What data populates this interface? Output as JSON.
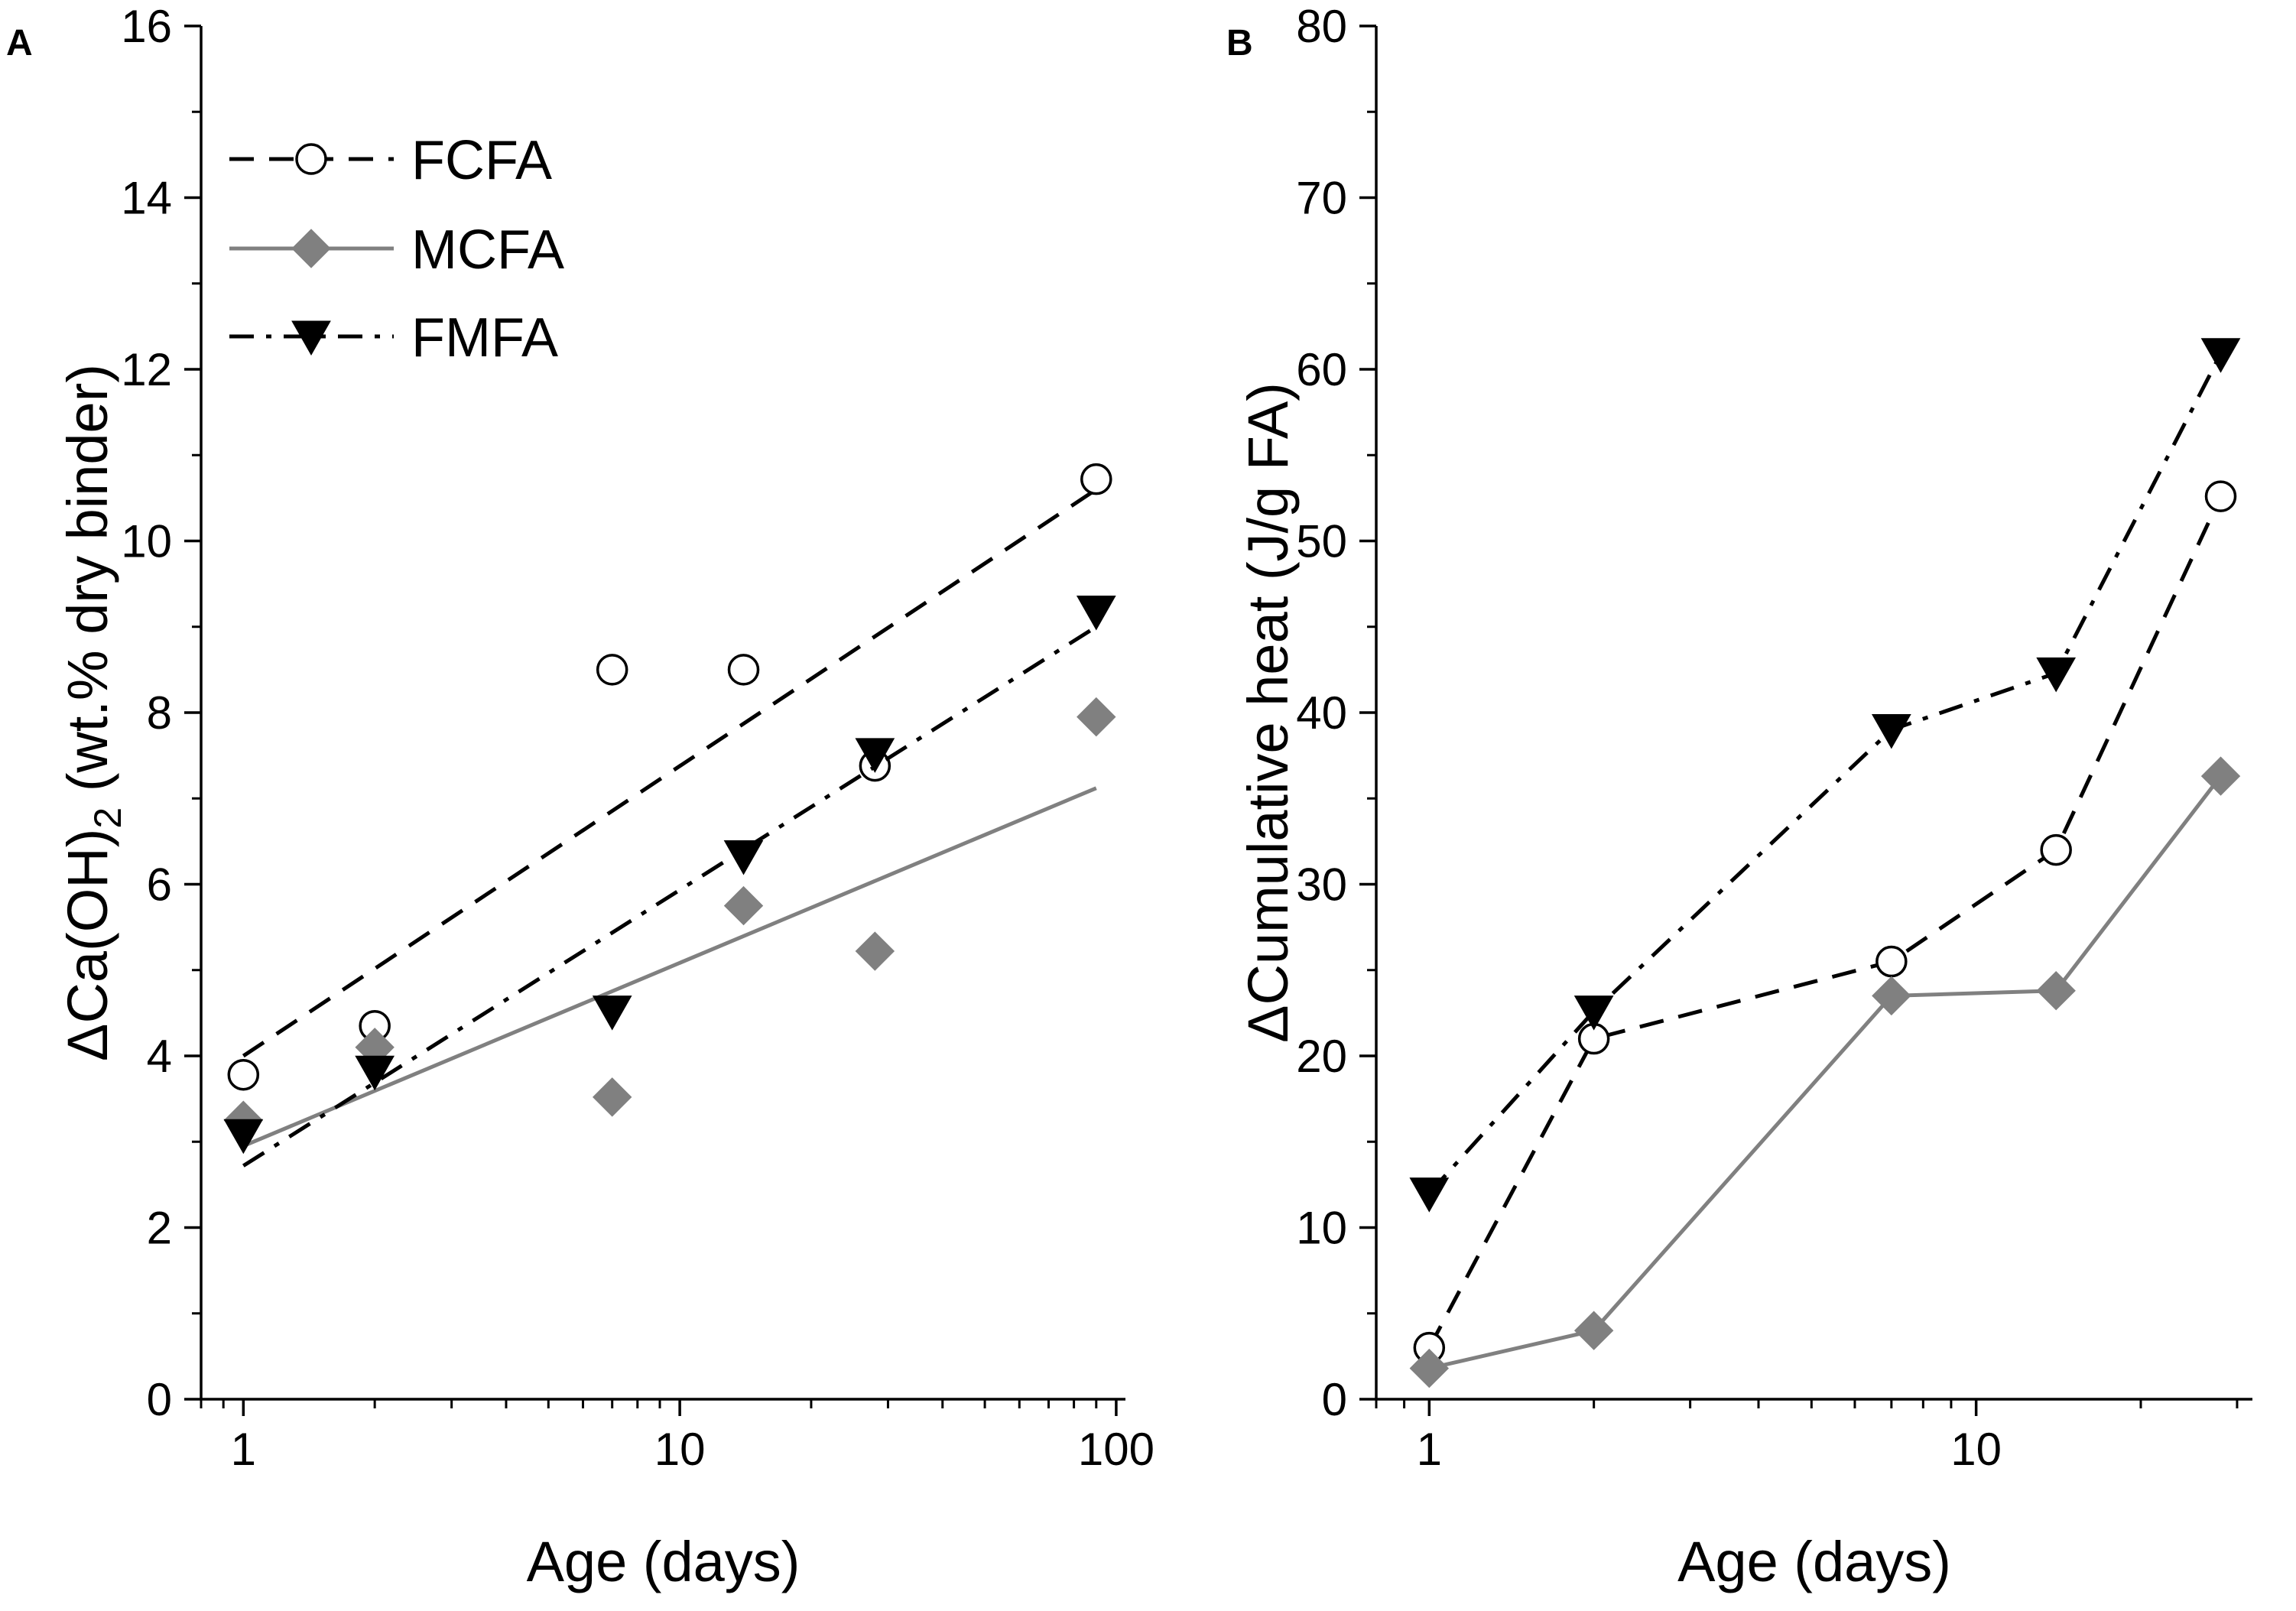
{
  "chart_data": [
    {
      "type": "scatter",
      "panel_label": "A",
      "xlabel": "Age (days)",
      "ylabel_prefix": "ΔCa(OH)",
      "ylabel_subscript": "2",
      "ylabel_suffix": " (wt.% dry binder)",
      "xscale": "log",
      "xlim": [
        0.8,
        105
      ],
      "ylim": [
        0,
        16
      ],
      "x_ticks": [
        1,
        10,
        100
      ],
      "x_tick_labels": [
        "1",
        "10",
        "100"
      ],
      "y_ticks": [
        0,
        2,
        4,
        6,
        8,
        10,
        12,
        14,
        16
      ],
      "y_tick_labels": [
        "0",
        "2",
        "4",
        "6",
        "8",
        "10",
        "12",
        "14",
        "16"
      ],
      "legend_position": "top-left",
      "series": [
        {
          "name": "FCFA",
          "marker": "circle-open",
          "line": "dashed",
          "color": "#000000",
          "x": [
            1,
            2,
            7,
            14,
            28,
            90
          ],
          "y": [
            3.78,
            4.35,
            8.5,
            8.5,
            7.38,
            10.72
          ],
          "fit": {
            "x": [
              1,
              90
            ],
            "y": [
              4.0,
              10.6
            ]
          }
        },
        {
          "name": "MCFA",
          "marker": "diamond",
          "line": "solid",
          "color": "#808080",
          "x": [
            1,
            2,
            7,
            14,
            28,
            90
          ],
          "y": [
            3.25,
            4.1,
            3.52,
            5.75,
            5.22,
            7.95
          ],
          "fit": {
            "x": [
              1,
              90
            ],
            "y": [
              2.95,
              7.12
            ]
          }
        },
        {
          "name": "FMFA",
          "marker": "triangle-down",
          "line": "dashdot",
          "color": "#000000",
          "x": [
            1,
            2,
            7,
            14,
            28,
            90
          ],
          "y": [
            3.08,
            3.82,
            4.52,
            6.33,
            7.52,
            9.18
          ],
          "fit": {
            "x": [
              1,
              90
            ],
            "y": [
              2.72,
              9.0
            ]
          }
        }
      ]
    },
    {
      "type": "line",
      "panel_label": "B",
      "xlabel": "Age (days)",
      "ylabel": "ΔCumulative heat (J/g FA)",
      "xscale": "log",
      "xlim": [
        0.8,
        32
      ],
      "ylim": [
        0,
        80
      ],
      "x_ticks": [
        1,
        10
      ],
      "x_tick_labels": [
        "1",
        "10"
      ],
      "y_ticks": [
        0,
        10,
        20,
        30,
        40,
        50,
        60,
        70,
        80
      ],
      "y_tick_labels": [
        "0",
        "10",
        "20",
        "30",
        "40",
        "50",
        "60",
        "70",
        "80"
      ],
      "series": [
        {
          "name": "FCFA",
          "marker": "circle-open",
          "line": "dashed",
          "color": "#000000",
          "x": [
            1,
            2,
            7,
            14,
            28
          ],
          "y": [
            3.0,
            21.0,
            25.5,
            32.0,
            52.6
          ]
        },
        {
          "name": "MCFA",
          "marker": "diamond",
          "line": "solid",
          "color": "#808080",
          "x": [
            1,
            2,
            7,
            14,
            28
          ],
          "y": [
            1.8,
            4.0,
            23.5,
            23.8,
            36.3
          ]
        },
        {
          "name": "FMFA",
          "marker": "triangle-down",
          "line": "dashdot",
          "color": "#000000",
          "x": [
            1,
            2,
            7,
            14,
            28
          ],
          "y": [
            12.0,
            22.6,
            39.0,
            42.3,
            60.9
          ]
        }
      ]
    }
  ]
}
